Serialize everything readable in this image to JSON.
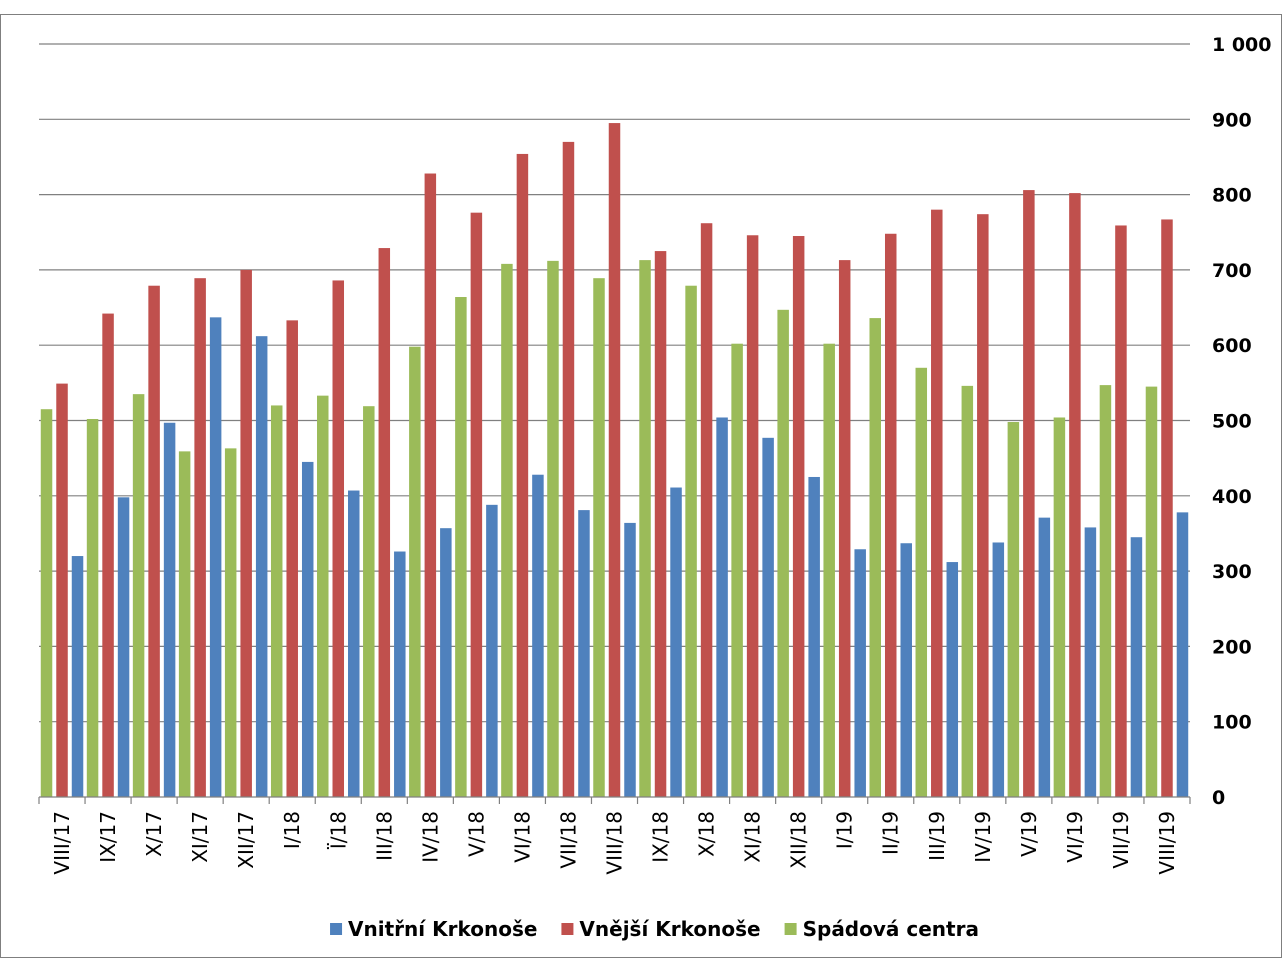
{
  "chart_data": {
    "type": "bar",
    "title": "",
    "xlabel": "",
    "ylabel": "",
    "ylim": [
      0,
      1000
    ],
    "yticks": [
      0,
      100,
      200,
      300,
      400,
      500,
      600,
      700,
      800,
      900,
      1000
    ],
    "ytick_labels": [
      "0",
      "100",
      "200",
      "300",
      "400",
      "500",
      "600",
      "700",
      "800",
      "900",
      "1 000"
    ],
    "y_axis_position": "right",
    "grid": true,
    "legend_position": "bottom",
    "categories": [
      "VIII/17",
      "IX/17",
      "X/17",
      "XI/17",
      "XII/17",
      "I/18",
      "Ï/18",
      "III/18",
      "IV/18",
      "V/18",
      "VI/18",
      "VII/18",
      "VIII/18",
      "IX/18",
      "X/18",
      "XI/18",
      "XII/18",
      "I/19",
      "II/19",
      "III/19",
      "IV/19",
      "V/19",
      "VI/19",
      "VII/19",
      "VIII/19"
    ],
    "series": [
      {
        "name": "Spádová centra",
        "color": "#9bbb59",
        "values": [
          515,
          502,
          535,
          459,
          463,
          520,
          533,
          519,
          598,
          664,
          708,
          712,
          689,
          713,
          679,
          602,
          647,
          602,
          636,
          570,
          546,
          498,
          504,
          547,
          545
        ]
      },
      {
        "name": "Vnější Krkonoše",
        "color": "#c0504d",
        "values": [
          549,
          642,
          679,
          689,
          700,
          633,
          686,
          729,
          828,
          776,
          854,
          870,
          895,
          725,
          762,
          746,
          745,
          713,
          748,
          780,
          774,
          806,
          802,
          759,
          767
        ]
      },
      {
        "name": "Vnitřní Krkonoše",
        "color": "#4f81bd",
        "values": [
          320,
          398,
          497,
          637,
          612,
          445,
          407,
          326,
          357,
          388,
          428,
          381,
          364,
          411,
          504,
          477,
          425,
          329,
          337,
          312,
          338,
          371,
          358,
          345,
          378
        ]
      }
    ],
    "legend": [
      {
        "name": "Vnitřní Krkonoše",
        "color": "#4f81bd"
      },
      {
        "name": "Vnější Krkonoše",
        "color": "#c0504d"
      },
      {
        "name": "Spádová centra",
        "color": "#9bbb59"
      }
    ]
  }
}
